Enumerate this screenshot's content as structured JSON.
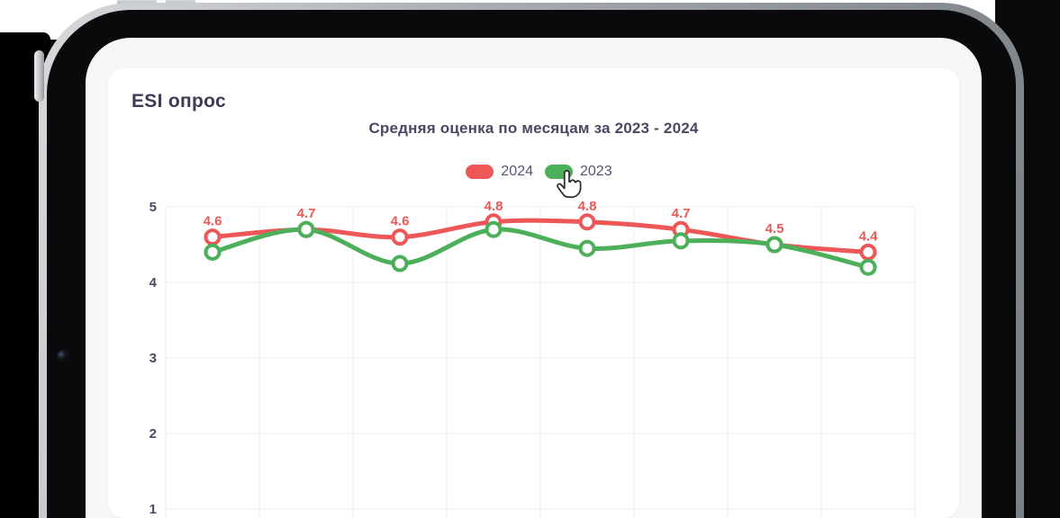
{
  "card": {
    "heading": "ESI опрос"
  },
  "chart_data": {
    "type": "line",
    "title": "Средняя оценка по месяцам за 2023 - 2024",
    "legend_position": "top",
    "grid": true,
    "y_ticks": [
      5,
      4,
      3,
      2,
      1
    ],
    "ylim_visible": [
      1,
      5
    ],
    "num_points": 8,
    "x_labels_visible": false,
    "gridline_color": "#ececf2",
    "axis_label_color": "#4b4967",
    "series": [
      {
        "name": "2024",
        "color": "#ee5757",
        "values": [
          4.6,
          4.7,
          4.6,
          4.8,
          4.8,
          4.7,
          4.5,
          4.4
        ],
        "point_labels": [
          "4.6",
          "4.7",
          "4.6",
          "4.8",
          "4.8",
          "4.7",
          "4.5",
          "4.4"
        ],
        "show_point_labels": true
      },
      {
        "name": "2023",
        "color": "#4cb05a",
        "values": [
          4.4,
          4.7,
          4.25,
          4.7,
          4.45,
          4.55,
          4.5,
          4.2
        ],
        "point_labels": [],
        "show_point_labels": false
      }
    ]
  },
  "cursor": {
    "type": "hand-pointer",
    "over": "legend-item-2023"
  }
}
